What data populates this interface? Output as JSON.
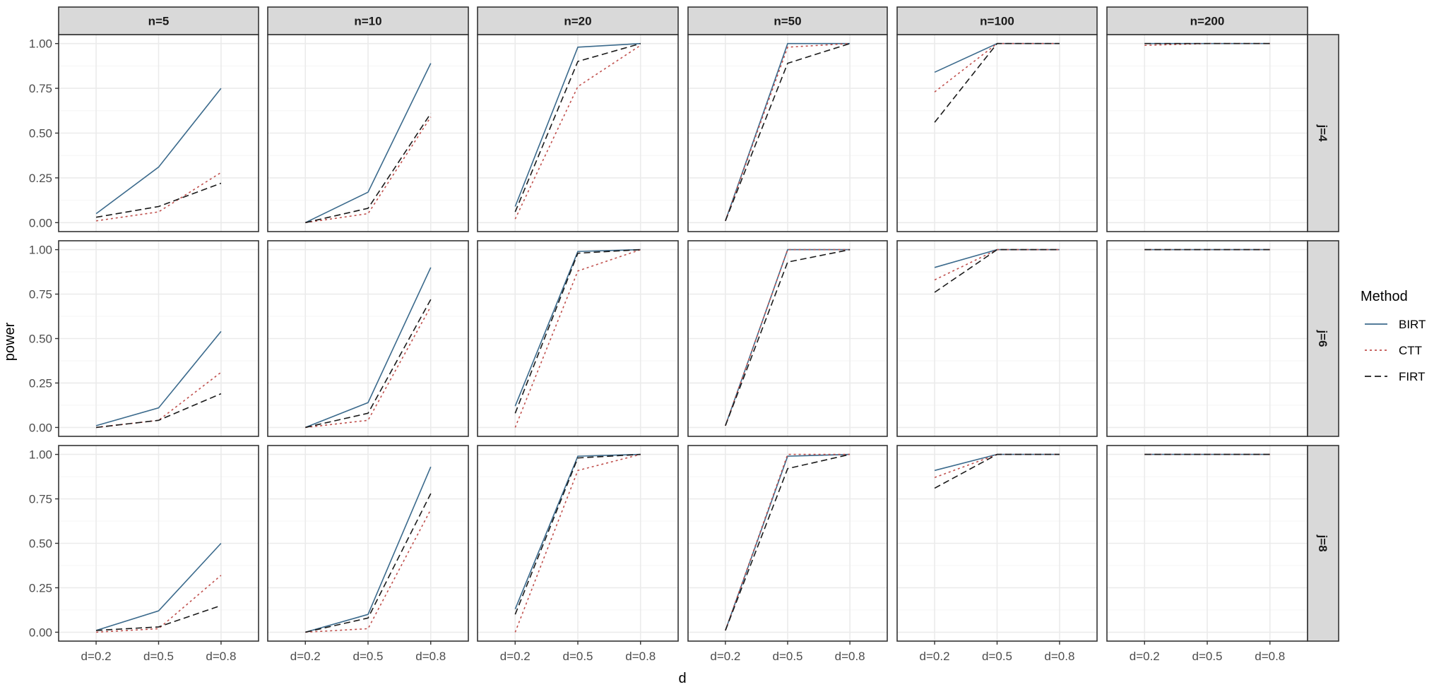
{
  "chart_data": {
    "type": "line",
    "title": "",
    "xlabel": "d",
    "ylabel": "power",
    "ylim": [
      0,
      1
    ],
    "grid": true,
    "legend_position": "right",
    "x": [
      "d=0.2",
      "d=0.5",
      "d=0.8"
    ],
    "y_ticks": [
      "0.00",
      "0.25",
      "0.50",
      "0.75",
      "1.00"
    ],
    "facet_cols": [
      "n=5",
      "n=10",
      "n=20",
      "n=50",
      "n=100",
      "n=200"
    ],
    "facet_rows": [
      "j=4",
      "j=6",
      "j=8"
    ],
    "legend": {
      "title": "Method",
      "entries": [
        {
          "name": "BIRT",
          "color": "#3b6a8c",
          "dash": "solid"
        },
        {
          "name": "CTT",
          "color": "#c0504d",
          "dash": "dotted"
        },
        {
          "name": "FIRT",
          "color": "#1a1a1a",
          "dash": "dashed"
        }
      ]
    },
    "panels": [
      {
        "row": "j=4",
        "col": "n=5",
        "series": [
          {
            "name": "BIRT",
            "values": [
              0.05,
              0.31,
              0.75
            ]
          },
          {
            "name": "CTT",
            "values": [
              0.01,
              0.06,
              0.28
            ]
          },
          {
            "name": "FIRT",
            "values": [
              0.03,
              0.09,
              0.22
            ]
          }
        ]
      },
      {
        "row": "j=4",
        "col": "n=10",
        "series": [
          {
            "name": "BIRT",
            "values": [
              0.0,
              0.17,
              0.89
            ]
          },
          {
            "name": "CTT",
            "values": [
              0.0,
              0.05,
              0.59
            ]
          },
          {
            "name": "FIRT",
            "values": [
              0.0,
              0.08,
              0.61
            ]
          }
        ]
      },
      {
        "row": "j=4",
        "col": "n=20",
        "series": [
          {
            "name": "BIRT",
            "values": [
              0.09,
              0.98,
              1.0
            ]
          },
          {
            "name": "CTT",
            "values": [
              0.02,
              0.76,
              0.99
            ]
          },
          {
            "name": "FIRT",
            "values": [
              0.06,
              0.9,
              1.0
            ]
          }
        ]
      },
      {
        "row": "j=4",
        "col": "n=50",
        "series": [
          {
            "name": "BIRT",
            "values": [
              0.01,
              1.0,
              1.0
            ]
          },
          {
            "name": "CTT",
            "values": [
              0.01,
              0.98,
              1.0
            ]
          },
          {
            "name": "FIRT",
            "values": [
              0.01,
              0.89,
              1.0
            ]
          }
        ]
      },
      {
        "row": "j=4",
        "col": "n=100",
        "series": [
          {
            "name": "BIRT",
            "values": [
              0.84,
              1.0,
              1.0
            ]
          },
          {
            "name": "CTT",
            "values": [
              0.73,
              1.0,
              1.0
            ]
          },
          {
            "name": "FIRT",
            "values": [
              0.56,
              1.0,
              1.0
            ]
          }
        ]
      },
      {
        "row": "j=4",
        "col": "n=200",
        "series": [
          {
            "name": "BIRT",
            "values": [
              1.0,
              1.0,
              1.0
            ]
          },
          {
            "name": "CTT",
            "values": [
              0.99,
              1.0,
              1.0
            ]
          },
          {
            "name": "FIRT",
            "values": [
              1.0,
              1.0,
              1.0
            ]
          }
        ]
      },
      {
        "row": "j=6",
        "col": "n=5",
        "series": [
          {
            "name": "BIRT",
            "values": [
              0.01,
              0.11,
              0.54
            ]
          },
          {
            "name": "CTT",
            "values": [
              0.0,
              0.04,
              0.31
            ]
          },
          {
            "name": "FIRT",
            "values": [
              0.0,
              0.04,
              0.19
            ]
          }
        ]
      },
      {
        "row": "j=6",
        "col": "n=10",
        "series": [
          {
            "name": "BIRT",
            "values": [
              0.0,
              0.14,
              0.9
            ]
          },
          {
            "name": "CTT",
            "values": [
              0.0,
              0.04,
              0.68
            ]
          },
          {
            "name": "FIRT",
            "values": [
              0.0,
              0.08,
              0.72
            ]
          }
        ]
      },
      {
        "row": "j=6",
        "col": "n=20",
        "series": [
          {
            "name": "BIRT",
            "values": [
              0.12,
              0.99,
              1.0
            ]
          },
          {
            "name": "CTT",
            "values": [
              0.0,
              0.88,
              1.0
            ]
          },
          {
            "name": "FIRT",
            "values": [
              0.08,
              0.98,
              1.0
            ]
          }
        ]
      },
      {
        "row": "j=6",
        "col": "n=50",
        "series": [
          {
            "name": "BIRT",
            "values": [
              0.01,
              1.0,
              1.0
            ]
          },
          {
            "name": "CTT",
            "values": [
              0.01,
              1.0,
              1.0
            ]
          },
          {
            "name": "FIRT",
            "values": [
              0.01,
              0.93,
              1.0
            ]
          }
        ]
      },
      {
        "row": "j=6",
        "col": "n=100",
        "series": [
          {
            "name": "BIRT",
            "values": [
              0.9,
              1.0,
              1.0
            ]
          },
          {
            "name": "CTT",
            "values": [
              0.83,
              1.0,
              1.0
            ]
          },
          {
            "name": "FIRT",
            "values": [
              0.76,
              1.0,
              1.0
            ]
          }
        ]
      },
      {
        "row": "j=6",
        "col": "n=200",
        "series": [
          {
            "name": "BIRT",
            "values": [
              1.0,
              1.0,
              1.0
            ]
          },
          {
            "name": "CTT",
            "values": [
              1.0,
              1.0,
              1.0
            ]
          },
          {
            "name": "FIRT",
            "values": [
              1.0,
              1.0,
              1.0
            ]
          }
        ]
      },
      {
        "row": "j=8",
        "col": "n=5",
        "series": [
          {
            "name": "BIRT",
            "values": [
              0.01,
              0.12,
              0.5
            ]
          },
          {
            "name": "CTT",
            "values": [
              0.0,
              0.02,
              0.32
            ]
          },
          {
            "name": "FIRT",
            "values": [
              0.01,
              0.03,
              0.15
            ]
          }
        ]
      },
      {
        "row": "j=8",
        "col": "n=10",
        "series": [
          {
            "name": "BIRT",
            "values": [
              0.0,
              0.1,
              0.93
            ]
          },
          {
            "name": "CTT",
            "values": [
              0.0,
              0.02,
              0.69
            ]
          },
          {
            "name": "FIRT",
            "values": [
              0.0,
              0.08,
              0.78
            ]
          }
        ]
      },
      {
        "row": "j=8",
        "col": "n=20",
        "series": [
          {
            "name": "BIRT",
            "values": [
              0.13,
              0.99,
              1.0
            ]
          },
          {
            "name": "CTT",
            "values": [
              0.0,
              0.91,
              1.0
            ]
          },
          {
            "name": "FIRT",
            "values": [
              0.1,
              0.98,
              1.0
            ]
          }
        ]
      },
      {
        "row": "j=8",
        "col": "n=50",
        "series": [
          {
            "name": "BIRT",
            "values": [
              0.01,
              0.99,
              1.0
            ]
          },
          {
            "name": "CTT",
            "values": [
              0.01,
              1.0,
              1.0
            ]
          },
          {
            "name": "FIRT",
            "values": [
              0.01,
              0.92,
              1.0
            ]
          }
        ]
      },
      {
        "row": "j=8",
        "col": "n=100",
        "series": [
          {
            "name": "BIRT",
            "values": [
              0.91,
              1.0,
              1.0
            ]
          },
          {
            "name": "CTT",
            "values": [
              0.87,
              1.0,
              1.0
            ]
          },
          {
            "name": "FIRT",
            "values": [
              0.81,
              1.0,
              1.0
            ]
          }
        ]
      },
      {
        "row": "j=8",
        "col": "n=200",
        "series": [
          {
            "name": "BIRT",
            "values": [
              1.0,
              1.0,
              1.0
            ]
          },
          {
            "name": "CTT",
            "values": [
              1.0,
              1.0,
              1.0
            ]
          },
          {
            "name": "FIRT",
            "values": [
              1.0,
              1.0,
              1.0
            ]
          }
        ]
      }
    ]
  },
  "colors": {
    "strip_bg": "#d9d9d9",
    "panel_border": "#333333",
    "grid_major": "#ebebeb",
    "grid_minor": "#f5f5f5",
    "tick_text": "#4d4d4d"
  }
}
